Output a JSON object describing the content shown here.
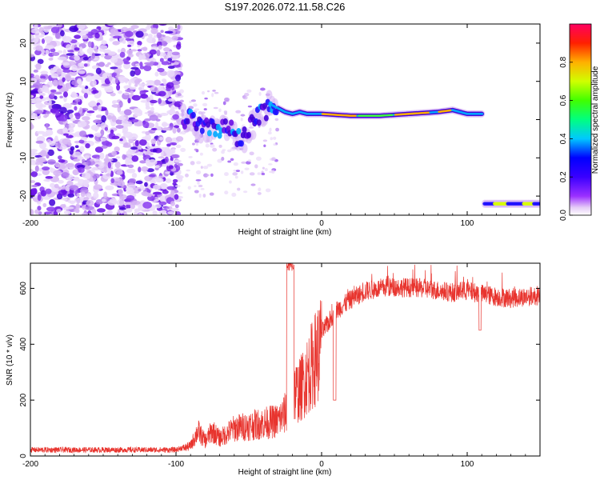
{
  "title": "S197.2026.072.11.58.C26",
  "chart_data": [
    {
      "type": "heatmap",
      "xlabel": "Height of straight line (km)",
      "ylabel": "Frequency (Hz)",
      "xlim": [
        -200,
        150
      ],
      "ylim": [
        -25,
        25
      ],
      "xticks": [
        "-200",
        "-100",
        "0",
        "100"
      ],
      "yticks": [
        "-20",
        "-10",
        "0",
        "10",
        "20"
      ],
      "ridge": [
        {
          "h": -95,
          "f": 0
        },
        {
          "h": -90,
          "f": 0.5
        },
        {
          "h": -85,
          "f": -2
        },
        {
          "h": -80,
          "f": -3
        },
        {
          "h": -75,
          "f": -1
        },
        {
          "h": -70,
          "f": -3
        },
        {
          "h": -65,
          "f": -2
        },
        {
          "h": -60,
          "f": -4
        },
        {
          "h": -55,
          "f": -6
        },
        {
          "h": -50,
          "f": -3
        },
        {
          "h": -45,
          "f": 0
        },
        {
          "h": -40,
          "f": 2
        },
        {
          "h": -35,
          "f": 4
        },
        {
          "h": -30,
          "f": 3
        },
        {
          "h": -25,
          "f": 2
        },
        {
          "h": -20,
          "f": 1.5
        },
        {
          "h": -15,
          "f": 2
        },
        {
          "h": -10,
          "f": 1.5
        },
        {
          "h": 0,
          "f": 1.5
        },
        {
          "h": 20,
          "f": 1
        },
        {
          "h": 40,
          "f": 1
        },
        {
          "h": 60,
          "f": 1.5
        },
        {
          "h": 80,
          "f": 2
        },
        {
          "h": 90,
          "f": 2.5
        },
        {
          "h": 100,
          "f": 1.5
        },
        {
          "h": 110,
          "f": 1.5
        }
      ],
      "alias_segment": {
        "h_start": 112,
        "h_end": 150,
        "f": -22
      },
      "colorbar": {
        "label": "Normalized spectral amplitude",
        "range": [
          0,
          1
        ],
        "ticks": [
          "0.0",
          "0.2",
          "0.4",
          "0.6",
          "0.8"
        ]
      }
    },
    {
      "type": "line",
      "xlabel": "Height of straight line (km)",
      "ylabel": "SNR (10 * v/v)",
      "xlim": [
        -200,
        150
      ],
      "ylim": [
        0,
        690
      ],
      "xticks": [
        "-200",
        "-100",
        "0",
        "100"
      ],
      "yticks": [
        "0",
        "200",
        "400",
        "600"
      ],
      "color": "#e8342e",
      "envelope": {
        "h": [
          -200,
          -100,
          -90,
          -85,
          -80,
          -75,
          -70,
          -60,
          -50,
          -40,
          -30,
          -25,
          -20,
          -15,
          -10,
          -5,
          0,
          10,
          20,
          30,
          40,
          50,
          70,
          90,
          100,
          110,
          120,
          130,
          140,
          150
        ],
        "snr": [
          22,
          22,
          40,
          100,
          60,
          100,
          70,
          110,
          120,
          130,
          140,
          170,
          250,
          260,
          320,
          380,
          440,
          520,
          560,
          590,
          600,
          605,
          600,
          585,
          590,
          580,
          570,
          565,
          570,
          575
        ]
      }
    }
  ]
}
